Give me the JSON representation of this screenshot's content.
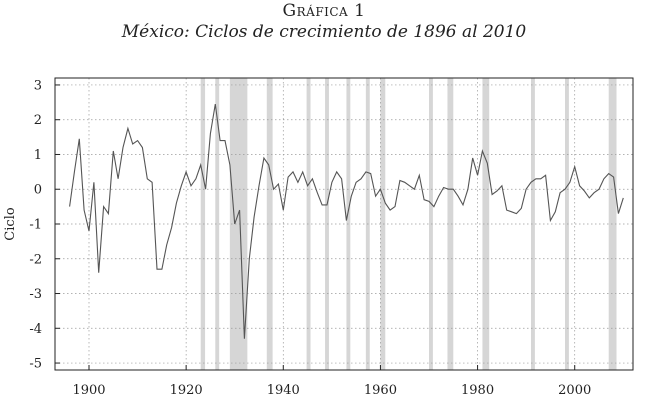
{
  "header": {
    "title": "Gráfica 1",
    "subtitle": "México: Ciclos de crecimiento de 1896 al 2010"
  },
  "chart_data": {
    "type": "line",
    "title": "Gráfica 1",
    "subtitle": "México: Ciclos de crecimiento de 1896 al 2010",
    "xlabel": "",
    "ylabel": "Ciclo",
    "xlim": [
      1893,
      2012
    ],
    "ylim": [
      -5.2,
      3.2
    ],
    "x_ticks": [
      1900,
      1920,
      1940,
      1960,
      1980,
      2000
    ],
    "y_ticks": [
      3,
      2,
      1,
      0,
      -1,
      -2,
      -3,
      -4,
      -5
    ],
    "y_tick_labels": [
      "3",
      "2",
      "1",
      "0",
      "-1",
      "-2",
      "-3",
      "-4",
      "-5"
    ],
    "grid": true,
    "line_color": "#555555",
    "band_color": "#d6d6d6",
    "shaded_periods": [
      [
        1923.0,
        1923.9
      ],
      [
        1926.0,
        1926.8
      ],
      [
        1929.0,
        1932.6
      ],
      [
        1936.6,
        1937.8
      ],
      [
        1944.8,
        1945.6
      ],
      [
        1948.6,
        1949.4
      ],
      [
        1953.0,
        1953.8
      ],
      [
        1957.0,
        1957.8
      ],
      [
        1960.0,
        1961.0
      ],
      [
        1970.0,
        1970.8
      ],
      [
        1973.8,
        1975.0
      ],
      [
        1981.0,
        1982.4
      ],
      [
        1991.0,
        1991.8
      ],
      [
        1998.0,
        1998.8
      ],
      [
        2007.0,
        2008.6
      ]
    ],
    "series": [
      {
        "x": [
          1896,
          1897,
          1898,
          1899,
          1900,
          1901,
          1902,
          1903,
          1904,
          1905,
          1906,
          1907,
          1908,
          1909,
          1910,
          1911,
          1912,
          1913,
          1914,
          1915,
          1916,
          1917,
          1918,
          1919,
          1920,
          1921,
          1922,
          1923,
          1924,
          1925,
          1926,
          1927,
          1928,
          1929,
          1930,
          1931,
          1932,
          1933,
          1934,
          1935,
          1936,
          1937,
          1938,
          1939,
          1940,
          1941,
          1942,
          1943,
          1944,
          1945,
          1946,
          1947,
          1948,
          1949,
          1950,
          1951,
          1952,
          1953,
          1954,
          1955,
          1956,
          1957,
          1958,
          1959,
          1960,
          1961,
          1962,
          1963,
          1964,
          1965,
          1966,
          1967,
          1968,
          1969,
          1970,
          1971,
          1972,
          1973,
          1974,
          1975,
          1976,
          1977,
          1978,
          1979,
          1980,
          1981,
          1982,
          1983,
          1984,
          1985,
          1986,
          1987,
          1988,
          1989,
          1990,
          1991,
          1992,
          1993,
          1994,
          1995,
          1996,
          1997,
          1998,
          1999,
          2000,
          2001,
          2002,
          2003,
          2004,
          2005,
          2006,
          2007,
          2008,
          2009,
          2010
        ],
        "values": [
          -0.5,
          0.5,
          1.45,
          -0.6,
          -1.2,
          0.2,
          -2.4,
          -0.5,
          -0.7,
          1.1,
          0.3,
          1.2,
          1.75,
          1.3,
          1.4,
          1.2,
          0.3,
          0.2,
          -2.3,
          -2.3,
          -1.6,
          -1.1,
          -0.4,
          0.1,
          0.5,
          0.1,
          0.3,
          0.7,
          0.0,
          1.6,
          2.45,
          1.4,
          1.4,
          0.7,
          -1.0,
          -0.6,
          -4.3,
          -2.0,
          -0.8,
          0.1,
          0.9,
          0.7,
          0.0,
          0.15,
          -0.6,
          0.35,
          0.5,
          0.2,
          0.5,
          0.1,
          0.3,
          -0.1,
          -0.45,
          -0.45,
          0.2,
          0.5,
          0.3,
          -0.9,
          -0.2,
          0.2,
          0.3,
          0.5,
          0.45,
          -0.2,
          0.0,
          -0.4,
          -0.6,
          -0.5,
          0.25,
          0.2,
          0.1,
          0.0,
          0.4,
          -0.3,
          -0.35,
          -0.5,
          -0.2,
          0.05,
          0.0,
          0.0,
          -0.2,
          -0.45,
          0.0,
          0.9,
          0.4,
          1.1,
          0.75,
          -0.15,
          -0.05,
          0.1,
          -0.6,
          -0.65,
          -0.7,
          -0.55,
          0.0,
          0.2,
          0.3,
          0.3,
          0.4,
          -0.9,
          -0.65,
          -0.1,
          0.0,
          0.2,
          0.65,
          0.1,
          -0.05,
          -0.25,
          -0.1,
          0.0,
          0.3,
          0.45,
          0.35,
          -0.7,
          -0.25
        ]
      }
    ]
  }
}
